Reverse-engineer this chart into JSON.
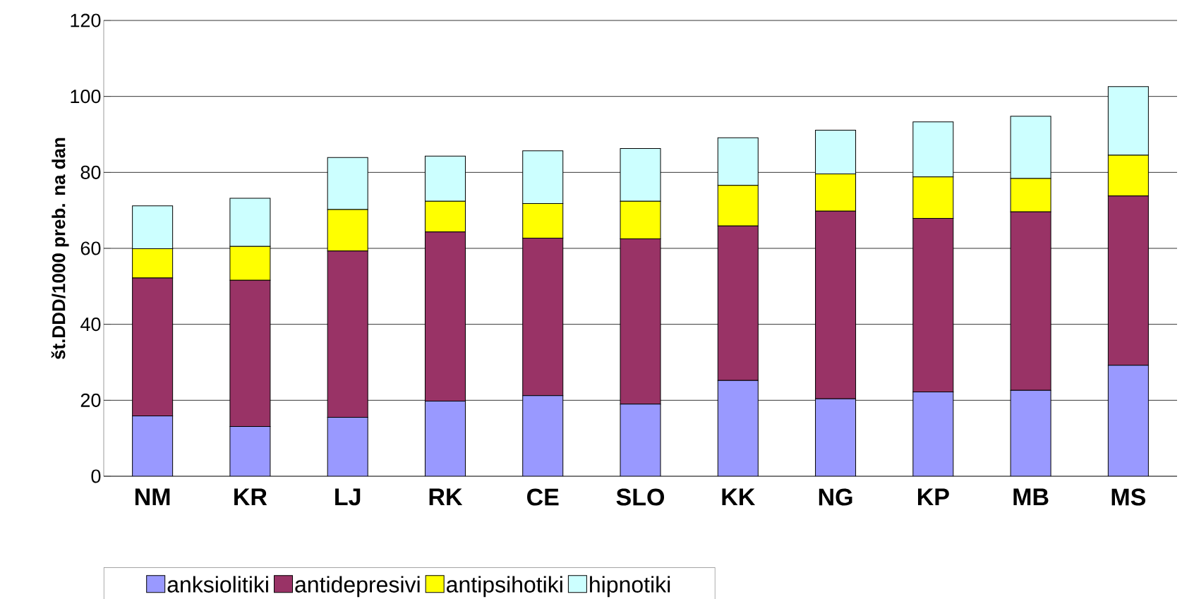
{
  "chart_data": {
    "type": "bar",
    "stacked": true,
    "ylabel": "št.DDD/1000 preb. na dan",
    "categories": [
      "NM",
      "KR",
      "LJ",
      "RK",
      "CE",
      "SLO",
      "KK",
      "NG",
      "KP",
      "MB",
      "MS"
    ],
    "series": [
      {
        "name": "anksiolitiki",
        "color": "#9999ff",
        "values": [
          15.9,
          13.1,
          15.5,
          19.8,
          21.2,
          19.0,
          25.2,
          20.4,
          22.2,
          22.6,
          29.2
        ]
      },
      {
        "name": "antidepresivi",
        "color": "#993366",
        "values": [
          36.3,
          38.5,
          43.8,
          44.5,
          41.5,
          43.5,
          40.7,
          49.4,
          45.7,
          47.0,
          44.6
        ]
      },
      {
        "name": "antipsihotiki",
        "color": "#ffff00",
        "values": [
          7.7,
          8.9,
          10.9,
          8.1,
          9.1,
          9.9,
          10.7,
          9.8,
          10.9,
          8.8,
          10.7
        ]
      },
      {
        "name": "hipnotiki",
        "color": "#ccffff",
        "values": [
          11.3,
          12.7,
          13.7,
          11.9,
          13.9,
          13.9,
          12.5,
          11.5,
          14.5,
          16.4,
          18.1
        ]
      }
    ],
    "ylim": [
      0,
      120
    ],
    "yticks": [
      0,
      20,
      40,
      60,
      80,
      100,
      120
    ],
    "grid": "y",
    "legend": "bottom"
  }
}
